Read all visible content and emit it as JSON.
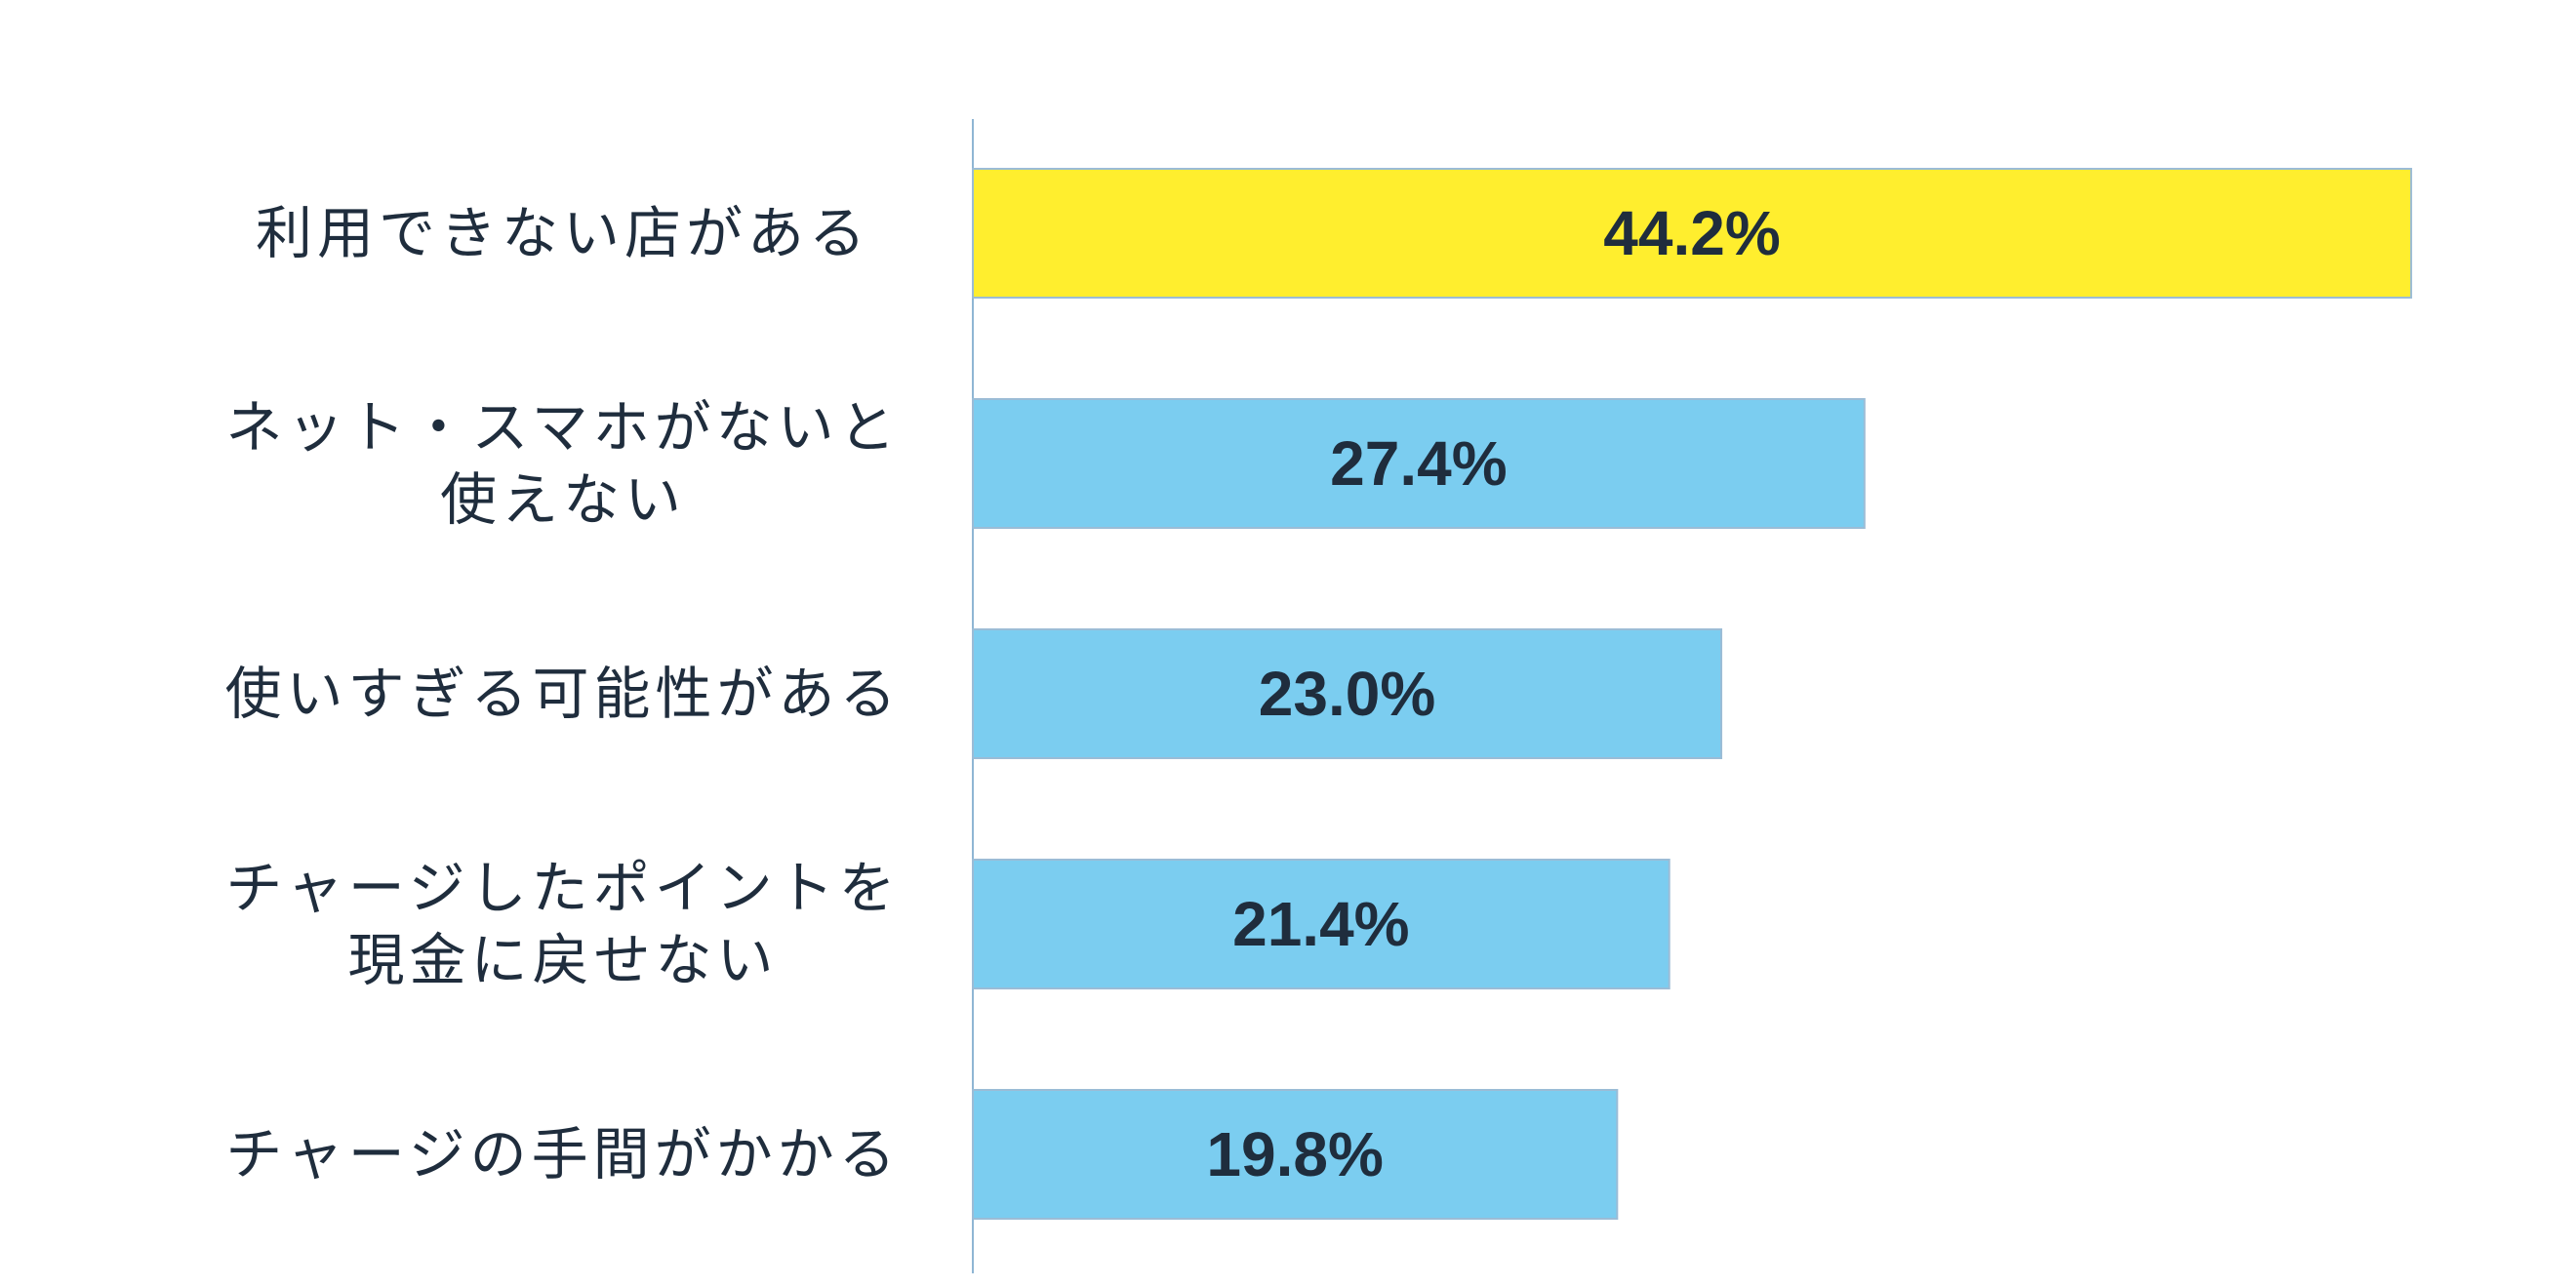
{
  "chart_data": {
    "type": "bar",
    "orientation": "horizontal",
    "categories": [
      [
        "利用できない店がある"
      ],
      [
        "ネット・スマホがないと",
        "使えない"
      ],
      [
        "使いすぎる可能性がある"
      ],
      [
        "チャージしたポイントを",
        "現金に戻せない"
      ],
      [
        "チャージの手間がかかる"
      ]
    ],
    "values": [
      44.2,
      27.4,
      23.0,
      21.4,
      19.8
    ],
    "value_labels": [
      "44.2%",
      "27.4%",
      "23.0%",
      "21.4%",
      "19.8%"
    ],
    "highlight_index": 0,
    "xlim": [
      0,
      50
    ],
    "grid": false,
    "legend": "none",
    "colors": {
      "highlight": "#ffee2e",
      "bar": "#7bcdf0",
      "bar_border": "#9bbcd6",
      "axis": "#8fb6d4",
      "text": "#1f2d3d"
    }
  }
}
